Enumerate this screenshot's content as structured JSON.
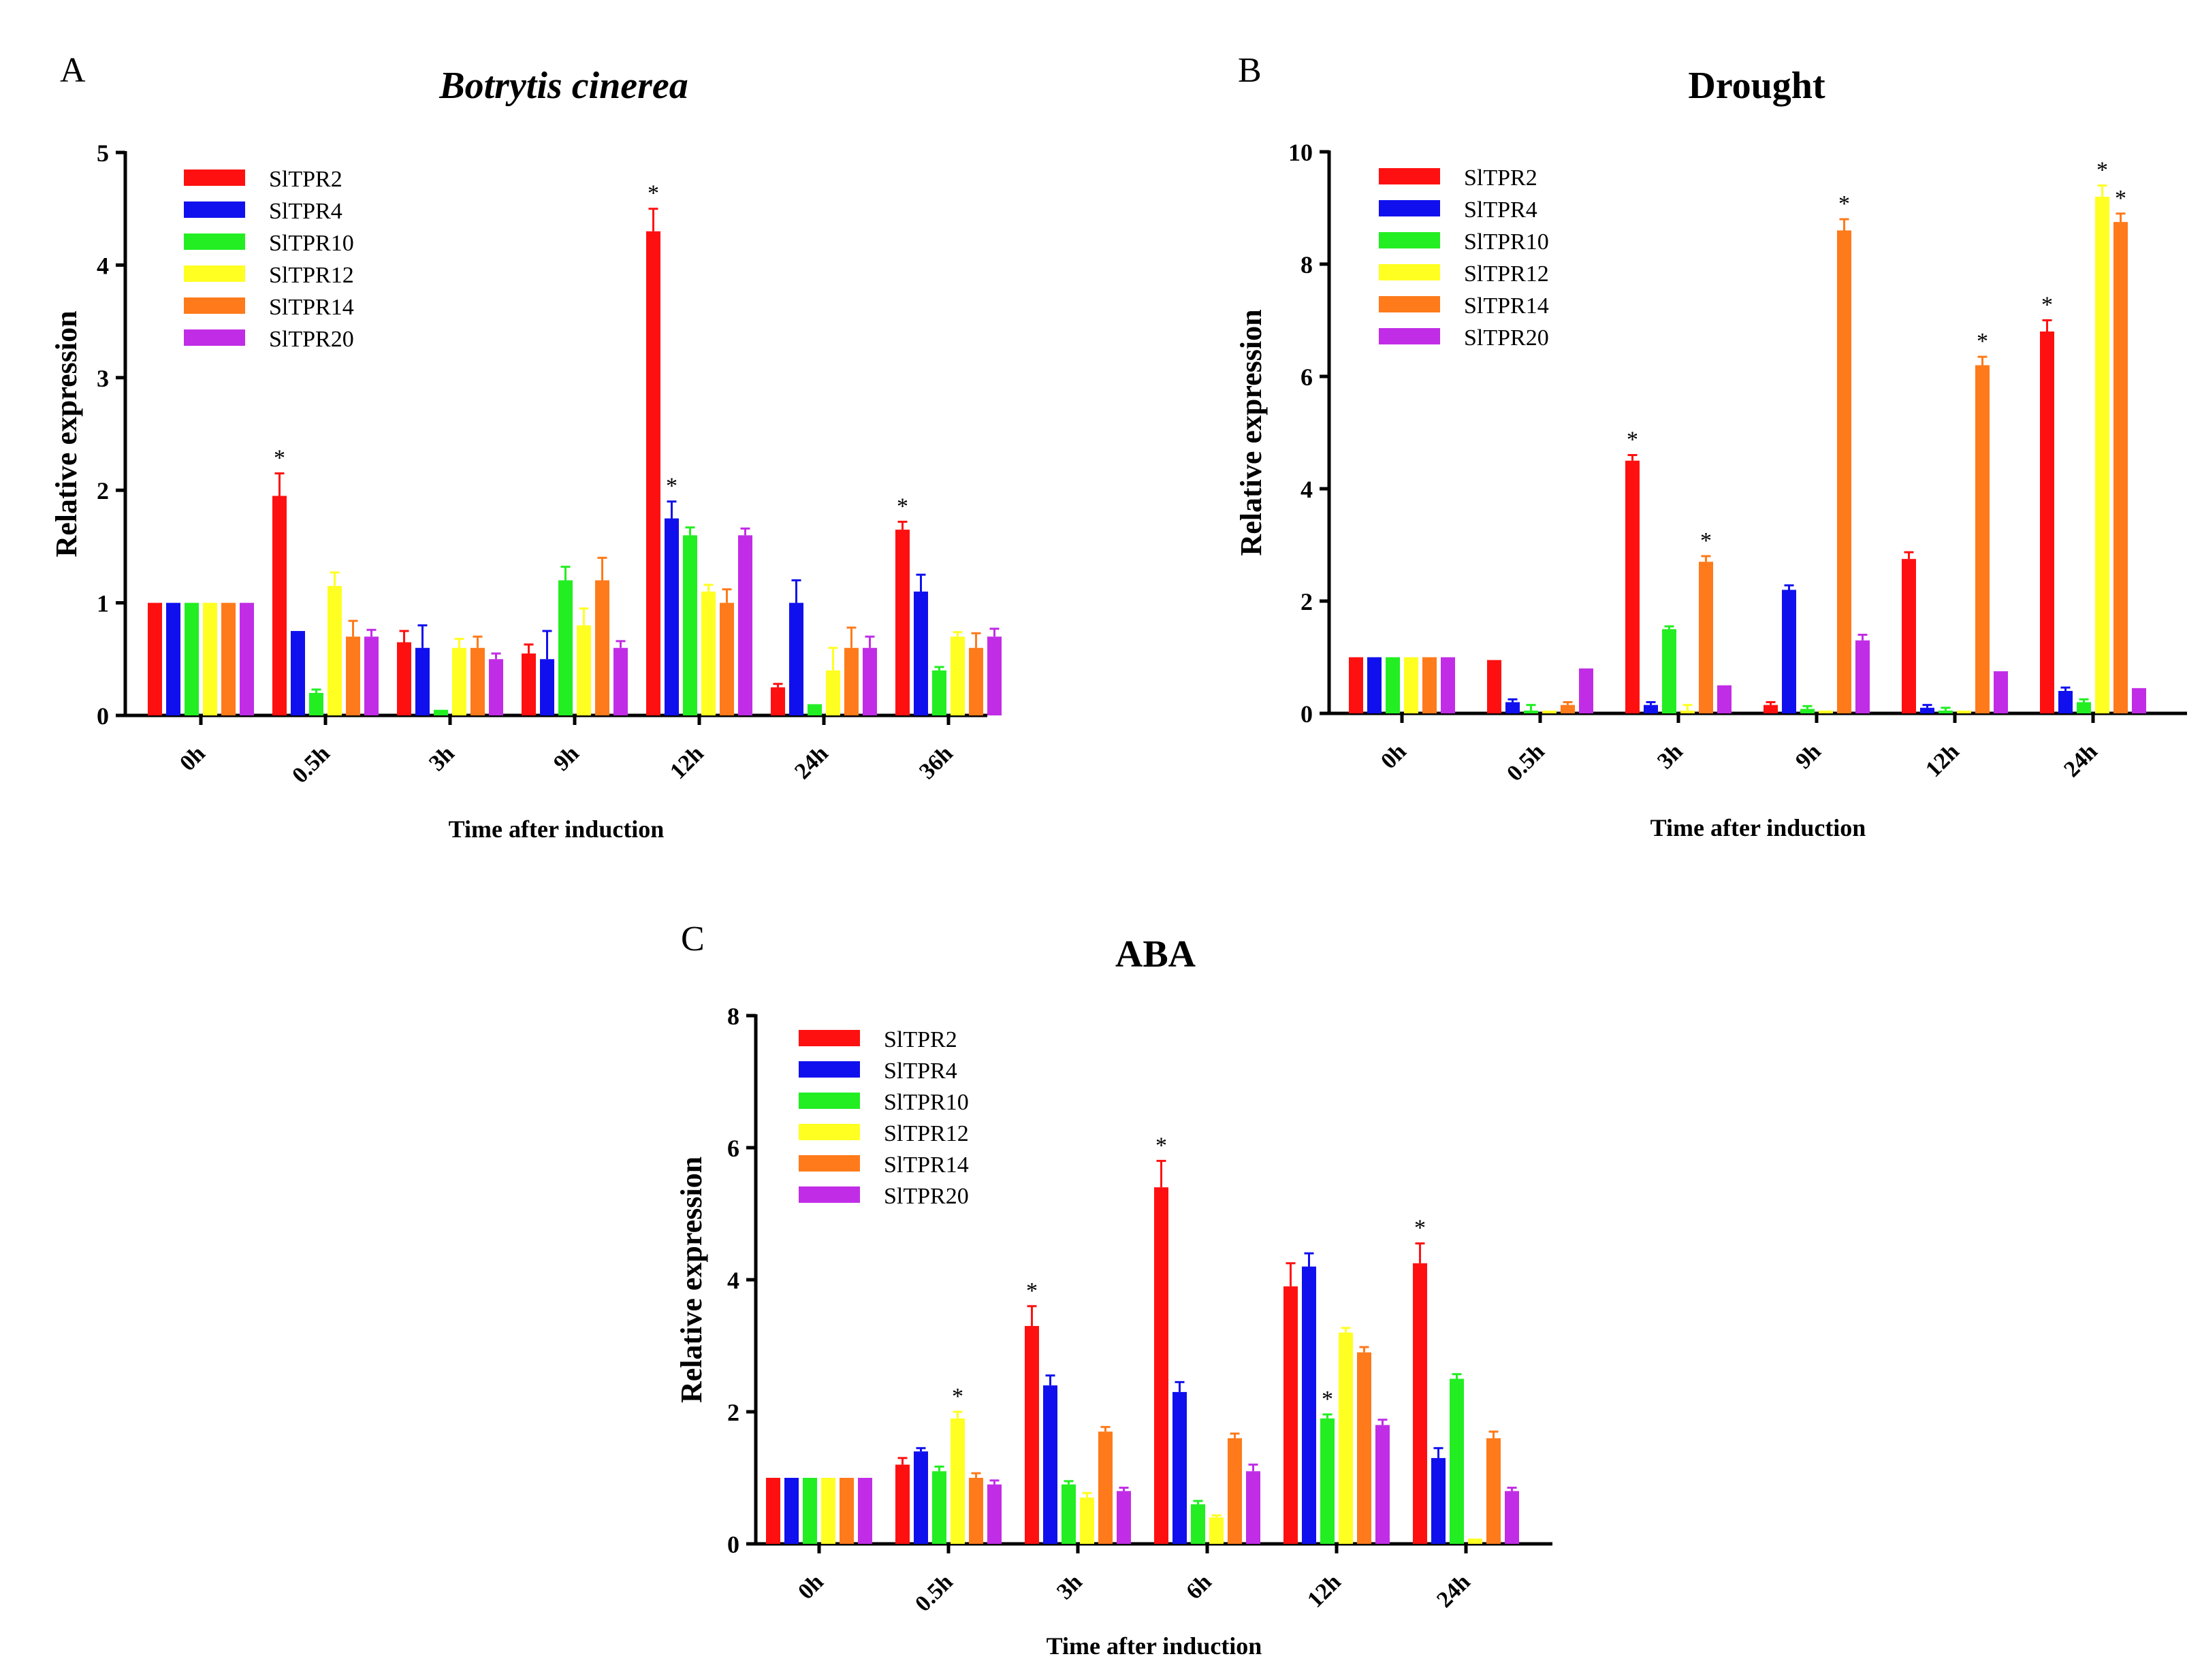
{
  "figure": {
    "legend_labels": [
      "SlTPR2",
      "SlTPR4",
      "SlTPR10",
      "SlTPR12",
      "SlTPR14",
      "SlTPR20"
    ],
    "series_colors": [
      "#ff1010",
      "#1010ee",
      "#22ee22",
      "#ffff22",
      "#ff7a1a",
      "#c12de6"
    ]
  },
  "chart_data": [
    {
      "panel_letter": "A",
      "type": "bar",
      "title": "Botrytis cinerea",
      "title_italic": true,
      "xlabel": "Time after induction",
      "ylabel": "Relative expression",
      "ylim": [
        0,
        5
      ],
      "yticks": [
        "0",
        "1",
        "2",
        "3",
        "4",
        "5"
      ],
      "categories": [
        "0h",
        "0.5h",
        "3h",
        "9h",
        "12h",
        "24h",
        "36h"
      ],
      "series": [
        {
          "name": "SlTPR2",
          "color": "#ff1010",
          "values": [
            1.0,
            1.95,
            0.65,
            0.55,
            4.3,
            0.25,
            1.65
          ],
          "errors": [
            0,
            0.2,
            0.1,
            0.08,
            0.2,
            0.03,
            0.07
          ]
        },
        {
          "name": "SlTPR4",
          "color": "#1010ee",
          "values": [
            1.0,
            0.75,
            0.6,
            0.5,
            1.75,
            1.0,
            1.1
          ],
          "errors": [
            0,
            0,
            0.2,
            0.25,
            0.15,
            0.2,
            0.15
          ]
        },
        {
          "name": "SlTPR10",
          "color": "#22ee22",
          "values": [
            1.0,
            0.2,
            0.05,
            1.2,
            1.6,
            0.1,
            0.4
          ],
          "errors": [
            0,
            0.03,
            0,
            0.12,
            0.07,
            0,
            0.03
          ]
        },
        {
          "name": "SlTPR12",
          "color": "#ffff22",
          "values": [
            1.0,
            1.15,
            0.6,
            0.8,
            1.1,
            0.4,
            0.7
          ],
          "errors": [
            0,
            0.12,
            0.08,
            0.15,
            0.06,
            0.2,
            0.04
          ]
        },
        {
          "name": "SlTPR14",
          "color": "#ff7a1a",
          "values": [
            1.0,
            0.7,
            0.6,
            1.2,
            1.0,
            0.6,
            0.6
          ],
          "errors": [
            0,
            0.14,
            0.1,
            0.2,
            0.12,
            0.18,
            0.13
          ]
        },
        {
          "name": "SlTPR20",
          "color": "#c12de6",
          "values": [
            1.0,
            0.7,
            0.5,
            0.6,
            1.6,
            0.6,
            0.7
          ],
          "errors": [
            0,
            0.06,
            0.05,
            0.06,
            0.06,
            0.1,
            0.07
          ]
        }
      ],
      "significance": [
        {
          "category": "0.5h",
          "series": "SlTPR2",
          "label": "*"
        },
        {
          "category": "12h",
          "series": "SlTPR2",
          "label": "*"
        },
        {
          "category": "12h",
          "series": "SlTPR4",
          "label": "*"
        },
        {
          "category": "36h",
          "series": "SlTPR2",
          "label": "*"
        }
      ]
    },
    {
      "panel_letter": "B",
      "type": "bar",
      "title": "Drought",
      "title_italic": false,
      "xlabel": "Time after induction",
      "ylabel": "Relative expression",
      "ylim": [
        0,
        10
      ],
      "yticks": [
        "0",
        "2",
        "4",
        "6",
        "8",
        "10"
      ],
      "categories": [
        "0h",
        "0.5h",
        "3h",
        "9h",
        "12h",
        "24h"
      ],
      "series": [
        {
          "name": "SlTPR2",
          "color": "#ff1010",
          "values": [
            1.0,
            0.95,
            4.5,
            0.15,
            2.75,
            6.8
          ],
          "errors": [
            0,
            0,
            0.1,
            0.05,
            0.12,
            0.2
          ]
        },
        {
          "name": "SlTPR4",
          "color": "#1010ee",
          "values": [
            1.0,
            0.2,
            0.15,
            2.2,
            0.1,
            0.4
          ],
          "errors": [
            0,
            0.05,
            0.05,
            0.08,
            0.05,
            0.06
          ]
        },
        {
          "name": "SlTPR10",
          "color": "#22ee22",
          "values": [
            1.0,
            0.05,
            1.5,
            0.08,
            0.05,
            0.2
          ],
          "errors": [
            0,
            0.1,
            0.05,
            0.05,
            0.05,
            0.05
          ]
        },
        {
          "name": "SlTPR12",
          "color": "#ffff22",
          "values": [
            1.0,
            0.05,
            0.05,
            0.05,
            0.05,
            9.2
          ],
          "errors": [
            0,
            0,
            0.1,
            0,
            0,
            0.2
          ]
        },
        {
          "name": "SlTPR14",
          "color": "#ff7a1a",
          "values": [
            1.0,
            0.15,
            2.7,
            8.6,
            6.2,
            8.75
          ],
          "errors": [
            0,
            0.05,
            0.1,
            0.2,
            0.15,
            0.15
          ]
        },
        {
          "name": "SlTPR20",
          "color": "#c12de6",
          "values": [
            1.0,
            0.8,
            0.5,
            1.3,
            0.75,
            0.45
          ],
          "errors": [
            0,
            0,
            0,
            0.1,
            0,
            0
          ]
        }
      ],
      "significance": [
        {
          "category": "3h",
          "series": "SlTPR2",
          "label": "*"
        },
        {
          "category": "3h",
          "series": "SlTPR14",
          "label": "*"
        },
        {
          "category": "9h",
          "series": "SlTPR14",
          "label": "*"
        },
        {
          "category": "12h",
          "series": "SlTPR14",
          "label": "*"
        },
        {
          "category": "24h",
          "series": "SlTPR2",
          "label": "*"
        },
        {
          "category": "24h",
          "series": "SlTPR12",
          "label": "*"
        },
        {
          "category": "24h",
          "series": "SlTPR14",
          "label": "*"
        }
      ]
    },
    {
      "panel_letter": "C",
      "type": "bar",
      "title": "ABA",
      "title_italic": false,
      "xlabel": "Time after induction",
      "ylabel": "Relative expression",
      "ylim": [
        0,
        8
      ],
      "yticks": [
        "0",
        "2",
        "4",
        "6",
        "8"
      ],
      "categories": [
        "0h",
        "0.5h",
        "3h",
        "6h",
        "12h",
        "24h"
      ],
      "series": [
        {
          "name": "SlTPR2",
          "color": "#ff1010",
          "values": [
            1.0,
            1.2,
            3.3,
            5.4,
            3.9,
            4.25
          ],
          "errors": [
            0,
            0.1,
            0.3,
            0.4,
            0.35,
            0.3
          ]
        },
        {
          "name": "SlTPR4",
          "color": "#1010ee",
          "values": [
            1.0,
            1.4,
            2.4,
            2.3,
            4.2,
            1.3
          ],
          "errors": [
            0,
            0.05,
            0.15,
            0.15,
            0.2,
            0.15
          ]
        },
        {
          "name": "SlTPR10",
          "color": "#22ee22",
          "values": [
            1.0,
            1.1,
            0.9,
            0.6,
            1.9,
            2.5
          ],
          "errors": [
            0,
            0.07,
            0.05,
            0.05,
            0.06,
            0.07
          ]
        },
        {
          "name": "SlTPR12",
          "color": "#ffff22",
          "values": [
            1.0,
            1.9,
            0.7,
            0.4,
            3.2,
            0.08
          ],
          "errors": [
            0,
            0.1,
            0.07,
            0.03,
            0.07,
            0
          ]
        },
        {
          "name": "SlTPR14",
          "color": "#ff7a1a",
          "values": [
            1.0,
            1.0,
            1.7,
            1.6,
            2.9,
            1.6
          ],
          "errors": [
            0,
            0.07,
            0.07,
            0.07,
            0.08,
            0.1
          ]
        },
        {
          "name": "SlTPR20",
          "color": "#c12de6",
          "values": [
            1.0,
            0.9,
            0.8,
            1.1,
            1.8,
            0.8
          ],
          "errors": [
            0,
            0.06,
            0.05,
            0.1,
            0.08,
            0.05
          ]
        }
      ],
      "significance": [
        {
          "category": "0.5h",
          "series": "SlTPR12",
          "label": "*"
        },
        {
          "category": "3h",
          "series": "SlTPR2",
          "label": "*"
        },
        {
          "category": "6h",
          "series": "SlTPR2",
          "label": "*"
        },
        {
          "category": "12h",
          "series": "SlTPR10",
          "label": "*"
        },
        {
          "category": "24h",
          "series": "SlTPR2",
          "label": "*"
        }
      ]
    }
  ]
}
